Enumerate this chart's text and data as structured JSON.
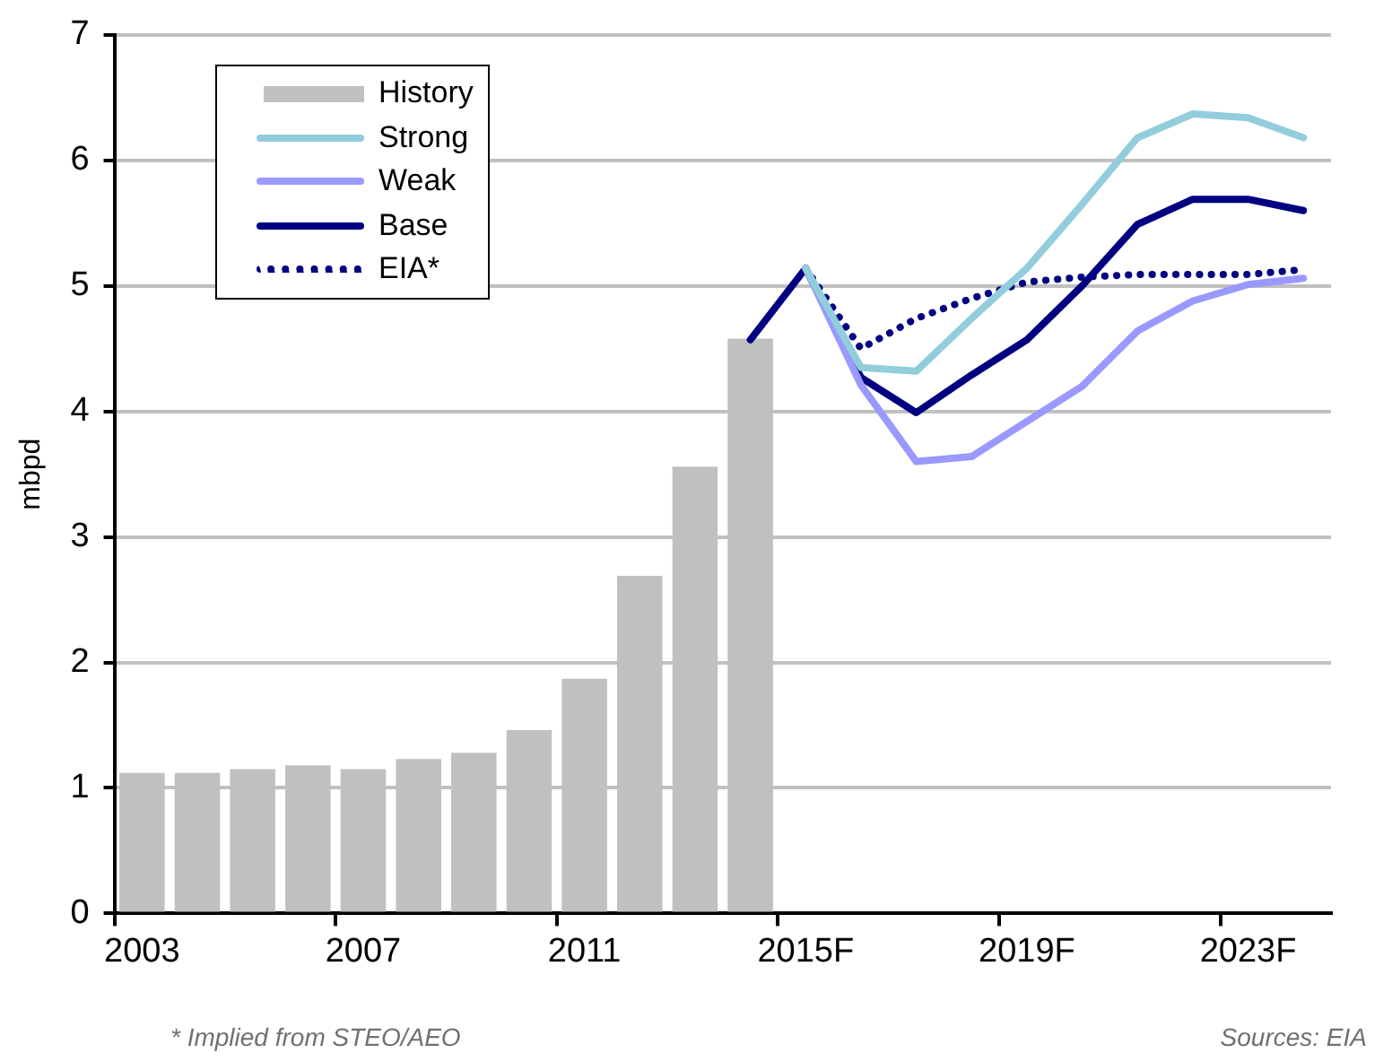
{
  "chart_data": {
    "type": "bar",
    "categories": [
      "2003",
      null,
      null,
      null,
      "2007",
      null,
      null,
      null,
      "2011",
      null,
      null,
      null,
      "2015F",
      null,
      null,
      null,
      "2019F",
      null,
      null,
      null,
      "2023F",
      null
    ],
    "series": [
      {
        "name": "History",
        "color": "#c0c0c0",
        "values": [
          1.12,
          1.12,
          1.15,
          1.18,
          1.15,
          1.23,
          1.28,
          1.46,
          1.87,
          2.69,
          3.56,
          4.58,
          null,
          null,
          null,
          null,
          null,
          null,
          null,
          null,
          null,
          null
        ]
      },
      {
        "name": "Strong",
        "type": "line",
        "color": "#92cddc",
        "line_style": "solid",
        "values": [
          null,
          null,
          null,
          null,
          null,
          null,
          null,
          null,
          null,
          null,
          null,
          null,
          5.14,
          4.35,
          4.32,
          4.74,
          5.14,
          5.65,
          6.18,
          6.37,
          6.34,
          6.18
        ]
      },
      {
        "name": "Weak",
        "type": "line",
        "color": "#9999ff",
        "line_style": "solid",
        "values": [
          null,
          null,
          null,
          null,
          null,
          null,
          null,
          null,
          null,
          null,
          null,
          null,
          5.14,
          4.21,
          3.6,
          3.64,
          3.92,
          4.2,
          4.64,
          4.88,
          5.01,
          5.06
        ]
      },
      {
        "name": "Base",
        "type": "line",
        "color": "#000080",
        "line_style": "solid",
        "values": [
          null,
          null,
          null,
          null,
          null,
          null,
          null,
          null,
          null,
          null,
          null,
          4.57,
          5.14,
          4.27,
          3.99,
          4.29,
          4.57,
          5.0,
          5.49,
          5.69,
          5.69,
          5.6
        ]
      },
      {
        "name": "EIA*",
        "type": "line",
        "color": "#000080",
        "line_style": "dotted",
        "values": [
          null,
          null,
          null,
          null,
          null,
          null,
          null,
          null,
          null,
          null,
          null,
          null,
          5.14,
          4.5,
          4.74,
          4.9,
          5.03,
          5.07,
          5.09,
          5.09,
          5.09,
          5.13
        ]
      }
    ],
    "ylabel": "mbpd",
    "ylim": [
      0,
      7
    ],
    "yticks": [
      0,
      1,
      2,
      3,
      4,
      5,
      6,
      7
    ],
    "grid": "y",
    "legend": "top left",
    "marker": "none",
    "annotations": [
      "* Implied from STEO/AEO",
      "Sources: EIA"
    ]
  }
}
